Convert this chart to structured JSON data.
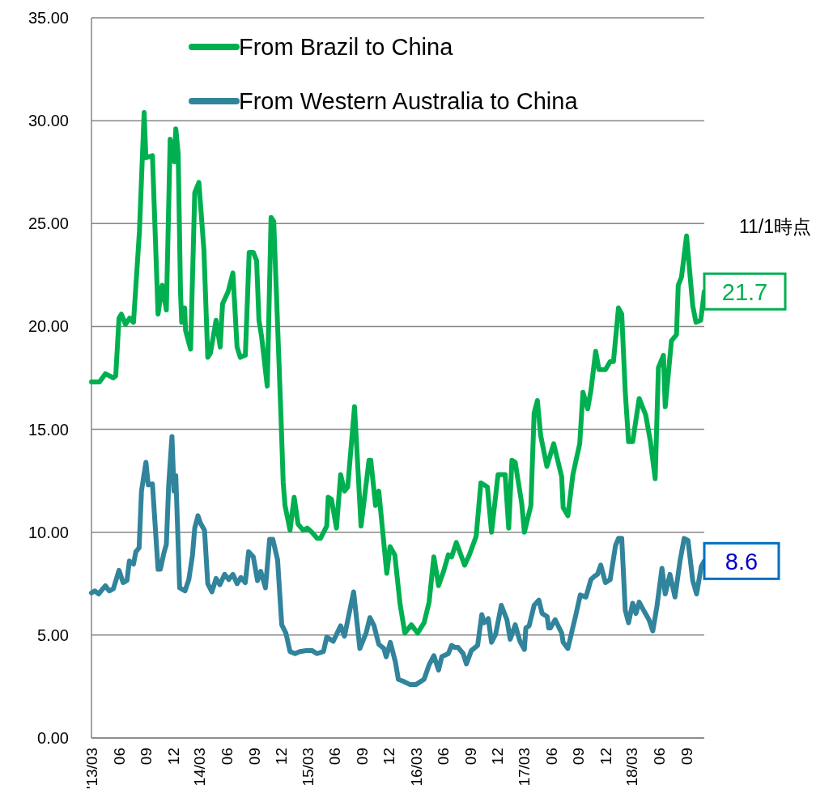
{
  "chart_data": {
    "type": "line",
    "series": [
      {
        "name": "From Brazil to China",
        "color": "#00b050",
        "x": [
          "2013-03-01",
          "2013-03-28",
          "2013-04-17",
          "2013-05-14",
          "2013-05-22",
          "2013-06-02",
          "2013-06-10",
          "2013-06-24",
          "2013-07-08",
          "2013-07-21",
          "2013-08-10",
          "2013-08-26",
          "2013-09-01",
          "2013-09-23",
          "2013-10-12",
          "2013-10-26",
          "2013-11-09",
          "2013-11-22",
          "2013-12-06",
          "2013-12-11",
          "2013-12-19",
          "2013-12-27",
          "2013-12-31",
          "2014-01-10",
          "2014-01-13",
          "2014-01-30",
          "2014-02-13",
          "2014-02-27",
          "2014-03-16",
          "2014-03-18",
          "2014-03-29",
          "2014-04-07",
          "2014-04-26",
          "2014-05-10",
          "2014-05-18",
          "2014-06-06",
          "2014-06-22",
          "2014-07-06",
          "2014-07-17",
          "2014-08-03",
          "2014-08-16",
          "2014-08-30",
          "2014-09-10",
          "2014-09-18",
          "2014-09-27",
          "2014-10-16",
          "2014-10-29",
          "2014-11-07",
          "2014-12-01",
          "2014-12-09",
          "2014-12-15",
          "2015-01-01",
          "2015-01-15",
          "2015-01-28",
          "2015-02-14",
          "2015-02-28",
          "2015-03-16",
          "2015-04-03",
          "2015-04-14",
          "2015-05-05",
          "2015-05-10",
          "2015-05-21",
          "2015-06-07",
          "2015-06-21",
          "2015-07-04",
          "2015-07-15",
          "2015-08-07",
          "2015-08-29",
          "2015-09-25",
          "2015-10-01",
          "2015-10-17",
          "2015-10-28",
          "2015-11-24",
          "2015-12-05",
          "2015-12-21",
          "2016-01-08",
          "2016-01-24",
          "2016-02-15",
          "2016-03-07",
          "2016-03-29",
          "2016-04-15",
          "2016-05-01",
          "2016-05-17",
          "2016-06-03",
          "2016-06-19",
          "2016-06-30",
          "2016-07-16",
          "2016-08-13",
          "2016-08-29",
          "2016-09-21",
          "2016-10-07",
          "2016-10-29",
          "2016-11-12",
          "2016-12-04",
          "2016-12-28",
          "2017-01-09",
          "2017-01-20",
          "2017-01-31",
          "2017-02-22",
          "2017-03-03",
          "2017-03-25",
          "2017-04-05",
          "2017-04-16",
          "2017-04-27",
          "2017-05-18",
          "2017-06-10",
          "2017-07-07",
          "2017-07-12",
          "2017-07-28",
          "2017-08-14",
          "2017-09-06",
          "2017-09-17",
          "2017-10-03",
          "2017-10-14",
          "2017-10-30",
          "2017-11-10",
          "2017-12-02",
          "2017-12-18",
          "2017-12-29",
          "2018-01-15",
          "2018-01-26",
          "2018-02-07",
          "2018-02-18",
          "2018-03-04",
          "2018-03-26",
          "2018-04-17",
          "2018-05-03",
          "2018-05-19",
          "2018-05-30",
          "2018-06-16",
          "2018-06-22",
          "2018-07-13",
          "2018-07-30",
          "2018-08-05",
          "2018-08-16",
          "2018-09-02",
          "2018-09-23",
          "2018-10-04",
          "2018-10-20",
          "2018-11-01"
        ],
        "values": [
          17.3,
          17.3,
          17.7,
          17.5,
          17.6,
          20.4,
          20.6,
          20.1,
          20.4,
          20.2,
          24.6,
          30.4,
          28.2,
          28.3,
          20.6,
          22.0,
          20.8,
          29.1,
          28.0,
          29.6,
          28.4,
          21.6,
          20.2,
          20.9,
          19.8,
          18.9,
          26.5,
          27.0,
          23.7,
          22.9,
          18.5,
          18.7,
          20.3,
          19.0,
          21.1,
          21.7,
          22.6,
          19.0,
          18.5,
          18.6,
          23.6,
          23.6,
          23.2,
          20.3,
          19.5,
          17.1,
          25.3,
          25.1,
          15.8,
          12.4,
          11.3,
          10.1,
          11.7,
          10.4,
          10.1,
          10.2,
          10.0,
          9.7,
          9.7,
          10.3,
          11.7,
          11.6,
          10.2,
          12.8,
          12.0,
          12.2,
          16.1,
          10.3,
          13.5,
          13.5,
          11.3,
          12.0,
          8.0,
          9.3,
          8.9,
          6.5,
          5.1,
          5.5,
          5.1,
          5.6,
          6.6,
          8.8,
          7.4,
          8.1,
          8.9,
          8.8,
          9.5,
          8.4,
          8.9,
          9.8,
          12.4,
          12.2,
          10.0,
          12.8,
          12.8,
          10.2,
          13.5,
          13.4,
          11.4,
          10.0,
          11.3,
          15.8,
          16.4,
          14.7,
          13.2,
          14.3,
          12.7,
          11.2,
          10.8,
          12.8,
          14.3,
          16.8,
          16.0,
          16.9,
          18.8,
          17.9,
          17.9,
          18.3,
          18.3,
          20.9,
          20.6,
          16.8,
          14.4,
          14.4,
          16.5,
          15.7,
          14.4,
          12.6,
          18.0,
          18.6,
          16.1,
          19.3,
          19.6,
          22.0,
          22.4,
          24.4,
          21.0,
          20.2,
          20.3,
          21.7
        ]
      },
      {
        "name": "From Western Australia to China",
        "color": "#31849b",
        "x": [
          "2013-03-01",
          "2013-03-12",
          "2013-03-25",
          "2013-04-17",
          "2013-04-30",
          "2013-05-14",
          "2013-06-02",
          "2013-06-16",
          "2013-06-29",
          "2013-07-07",
          "2013-07-21",
          "2013-07-29",
          "2013-08-09",
          "2013-08-17",
          "2013-09-01",
          "2013-09-09",
          "2013-09-23",
          "2013-10-12",
          "2013-10-20",
          "2013-11-01",
          "2013-11-09",
          "2013-11-17",
          "2013-11-28",
          "2013-12-05",
          "2013-12-11",
          "2013-12-24",
          "2014-01-11",
          "2014-01-24",
          "2014-02-05",
          "2014-02-13",
          "2014-02-24",
          "2014-03-04",
          "2014-03-18",
          "2014-03-29",
          "2014-04-12",
          "2014-04-26",
          "2014-05-09",
          "2014-05-25",
          "2014-06-08",
          "2014-06-22",
          "2014-07-06",
          "2014-07-19",
          "2014-08-03",
          "2014-08-14",
          "2014-08-30",
          "2014-09-13",
          "2014-09-24",
          "2014-10-10",
          "2014-10-24",
          "2014-11-04",
          "2014-11-20",
          "2014-12-04",
          "2014-12-18",
          "2015-01-01",
          "2015-01-18",
          "2015-02-03",
          "2015-02-25",
          "2015-03-16",
          "2015-04-02",
          "2015-04-24",
          "2015-05-05",
          "2015-05-27",
          "2015-06-21",
          "2015-07-04",
          "2015-08-04",
          "2015-08-25",
          "2015-09-15",
          "2015-09-28",
          "2015-10-12",
          "2015-10-28",
          "2015-11-14",
          "2015-11-22",
          "2015-12-06",
          "2015-12-23",
          "2016-01-02",
          "2016-01-19",
          "2016-02-10",
          "2016-03-02",
          "2016-03-29",
          "2016-04-15",
          "2016-05-01",
          "2016-05-17",
          "2016-05-28",
          "2016-06-19",
          "2016-06-30",
          "2016-07-11",
          "2016-07-22",
          "2016-08-08",
          "2016-08-19",
          "2016-09-05",
          "2016-09-26",
          "2016-10-10",
          "2016-10-18",
          "2016-11-01",
          "2016-11-12",
          "2016-11-26",
          "2016-12-15",
          "2017-01-03",
          "2017-01-14",
          "2017-01-31",
          "2017-02-16",
          "2017-03-03",
          "2017-03-08",
          "2017-03-19",
          "2017-04-05",
          "2017-04-21",
          "2017-05-02",
          "2017-05-19",
          "2017-05-24",
          "2017-05-30",
          "2017-06-15",
          "2017-07-07",
          "2017-07-12",
          "2017-07-28",
          "2017-08-25",
          "2017-09-08",
          "2017-09-27",
          "2017-10-14",
          "2017-10-25",
          "2017-11-05",
          "2017-11-16",
          "2017-12-02",
          "2017-12-18",
          "2018-01-05",
          "2018-01-15",
          "2018-01-26",
          "2018-02-07",
          "2018-02-18",
          "2018-03-04",
          "2018-03-15",
          "2018-03-26",
          "2018-04-12",
          "2018-04-28",
          "2018-05-11",
          "2018-05-25",
          "2018-06-11",
          "2018-06-22",
          "2018-07-08",
          "2018-07-25",
          "2018-08-11",
          "2018-08-25",
          "2018-09-07",
          "2018-09-23",
          "2018-10-06",
          "2018-10-22",
          "2018-11-01"
        ],
        "values": [
          7.05,
          7.15,
          7.0,
          7.4,
          7.15,
          7.25,
          8.15,
          7.55,
          7.65,
          8.6,
          8.45,
          9.05,
          9.25,
          12.0,
          13.4,
          12.3,
          12.35,
          8.2,
          8.2,
          9.0,
          9.4,
          12.3,
          14.65,
          12.0,
          12.75,
          7.3,
          7.15,
          7.7,
          8.85,
          10.2,
          10.8,
          10.45,
          10.1,
          7.5,
          7.1,
          7.75,
          7.45,
          7.95,
          7.7,
          7.95,
          7.5,
          7.8,
          7.55,
          9.05,
          8.8,
          7.65,
          8.1,
          7.3,
          9.65,
          9.65,
          8.65,
          5.5,
          5.1,
          4.2,
          4.1,
          4.2,
          4.25,
          4.25,
          4.1,
          4.2,
          4.9,
          4.7,
          5.45,
          4.95,
          7.1,
          4.35,
          5.1,
          5.85,
          5.45,
          4.55,
          4.35,
          3.95,
          4.65,
          3.7,
          2.85,
          2.75,
          2.6,
          2.6,
          2.85,
          3.55,
          4.0,
          3.3,
          3.95,
          4.1,
          4.5,
          4.4,
          4.4,
          4.1,
          3.6,
          4.25,
          4.5,
          6.0,
          5.6,
          5.8,
          4.65,
          5.05,
          6.45,
          5.75,
          4.8,
          5.5,
          4.7,
          4.3,
          5.35,
          5.45,
          6.45,
          6.7,
          6.05,
          5.9,
          5.35,
          5.35,
          5.75,
          5.1,
          4.65,
          4.35,
          6.05,
          6.95,
          6.85,
          7.7,
          7.85,
          7.95,
          8.4,
          7.55,
          7.7,
          9.35,
          9.7,
          9.7,
          6.2,
          5.6,
          6.55,
          6.05,
          6.6,
          6.15,
          5.75,
          5.2,
          6.4,
          8.25,
          7.0,
          7.95,
          6.85,
          8.6,
          9.7,
          9.6,
          7.65,
          7.0,
          8.35,
          8.6
        ]
      }
    ],
    "xlim": [
      "2013-03-01",
      "2018-11-01"
    ],
    "xticks": [
      {
        "value": "2013-03-01",
        "label": "'13/03"
      },
      {
        "value": "2013-06-01",
        "label": "06"
      },
      {
        "value": "2013-09-01",
        "label": "09"
      },
      {
        "value": "2013-12-01",
        "label": "12"
      },
      {
        "value": "2014-03-01",
        "label": "14/03"
      },
      {
        "value": "2014-06-01",
        "label": "06"
      },
      {
        "value": "2014-09-01",
        "label": "09"
      },
      {
        "value": "2014-12-01",
        "label": "12"
      },
      {
        "value": "2015-03-01",
        "label": "15/03"
      },
      {
        "value": "2015-06-01",
        "label": "06"
      },
      {
        "value": "2015-09-01",
        "label": "09"
      },
      {
        "value": "2015-12-01",
        "label": "12"
      },
      {
        "value": "2016-03-01",
        "label": "16/03"
      },
      {
        "value": "2016-06-01",
        "label": "06"
      },
      {
        "value": "2016-09-01",
        "label": "09"
      },
      {
        "value": "2016-12-01",
        "label": "12"
      },
      {
        "value": "2017-03-01",
        "label": "17/03"
      },
      {
        "value": "2017-06-01",
        "label": "06"
      },
      {
        "value": "2017-09-01",
        "label": "09"
      },
      {
        "value": "2017-12-01",
        "label": "12"
      },
      {
        "value": "2018-03-01",
        "label": "18/03"
      },
      {
        "value": "2018-06-01",
        "label": "06"
      },
      {
        "value": "2018-09-01",
        "label": "09"
      }
    ],
    "ylim": [
      0,
      35
    ],
    "yticks": [
      {
        "value": 0,
        "label": "0.00"
      },
      {
        "value": 5,
        "label": "5.00"
      },
      {
        "value": 10,
        "label": "10.00"
      },
      {
        "value": 15,
        "label": "15.00"
      },
      {
        "value": 20,
        "label": "20.00"
      },
      {
        "value": 25,
        "label": "25.00"
      },
      {
        "value": 30,
        "label": "30.00"
      },
      {
        "value": 35,
        "label": "35.00"
      }
    ],
    "grid": "y",
    "legend": "top",
    "marker": "none",
    "line_style": "solid",
    "annotations": [
      "11/1時点",
      {
        "text": "21.7",
        "x": "2018-11-01",
        "y": 21.7
      },
      {
        "text": "8.6",
        "x": "2018-11-01",
        "y": 8.6
      }
    ]
  }
}
